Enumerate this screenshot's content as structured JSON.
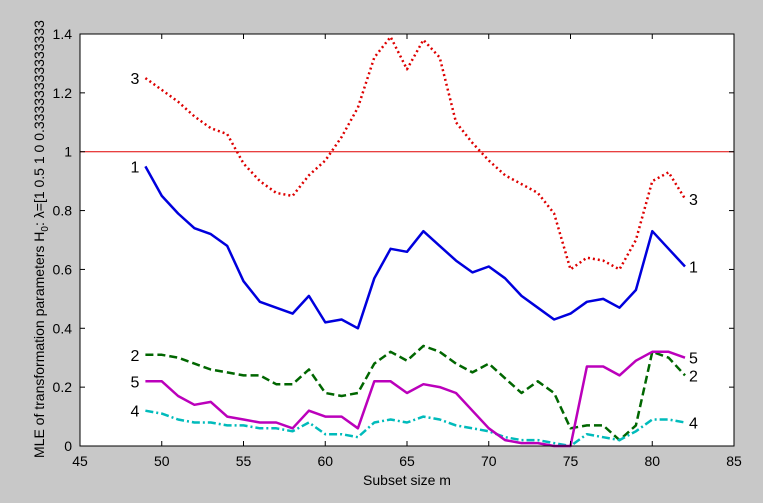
{
  "chart_data": {
    "type": "line",
    "xlabel": "Subset size m",
    "ylabel": "MLE of transformation parameters H",
    "ylabel_sub": "0",
    "ylabel_tail": ": λ=[1 0.5 1 0 0.33333333333333",
    "xlim": [
      45,
      85
    ],
    "ylim": [
      0,
      1.4
    ],
    "xticks": [
      45,
      50,
      55,
      60,
      65,
      70,
      75,
      80,
      85
    ],
    "yticks": [
      0,
      0.2,
      0.4,
      0.6,
      0.8,
      1,
      1.2,
      1.4
    ],
    "reference_line": {
      "y": 1,
      "color": "#e00000"
    },
    "x": [
      49,
      50,
      51,
      52,
      53,
      54,
      55,
      56,
      57,
      58,
      59,
      60,
      61,
      62,
      63,
      64,
      65,
      66,
      67,
      68,
      69,
      70,
      71,
      72,
      73,
      74,
      75,
      76,
      77,
      78,
      79,
      80,
      81,
      82
    ],
    "series": [
      {
        "label": "1",
        "color": "#0000dd",
        "dash": "solid",
        "values": [
          0.95,
          0.85,
          0.79,
          0.74,
          0.72,
          0.68,
          0.56,
          0.49,
          0.47,
          0.45,
          0.51,
          0.42,
          0.43,
          0.4,
          0.57,
          0.67,
          0.66,
          0.73,
          0.68,
          0.63,
          0.59,
          0.61,
          0.57,
          0.51,
          0.47,
          0.43,
          0.45,
          0.49,
          0.5,
          0.47,
          0.53,
          0.73,
          0.67,
          0.61
        ]
      },
      {
        "label": "2",
        "color": "#006600",
        "dash": "dashed",
        "values": [
          0.31,
          0.31,
          0.3,
          0.28,
          0.26,
          0.25,
          0.24,
          0.24,
          0.21,
          0.21,
          0.26,
          0.18,
          0.17,
          0.18,
          0.28,
          0.32,
          0.29,
          0.34,
          0.32,
          0.28,
          0.25,
          0.28,
          0.23,
          0.18,
          0.22,
          0.18,
          0.06,
          0.07,
          0.07,
          0.02,
          0.07,
          0.32,
          0.3,
          0.24
        ]
      },
      {
        "label": "3",
        "color": "#dd0000",
        "dash": "dotted",
        "values": [
          1.25,
          1.21,
          1.17,
          1.12,
          1.08,
          1.06,
          0.96,
          0.9,
          0.86,
          0.85,
          0.92,
          0.97,
          1.05,
          1.15,
          1.32,
          1.39,
          1.28,
          1.38,
          1.32,
          1.1,
          1.03,
          0.97,
          0.92,
          0.89,
          0.86,
          0.79,
          0.6,
          0.64,
          0.63,
          0.6,
          0.7,
          0.9,
          0.93,
          0.84
        ]
      },
      {
        "label": "4",
        "color": "#00bbbb",
        "dash": "dashdot",
        "values": [
          0.12,
          0.11,
          0.09,
          0.08,
          0.08,
          0.07,
          0.07,
          0.06,
          0.06,
          0.05,
          0.08,
          0.04,
          0.04,
          0.03,
          0.08,
          0.09,
          0.08,
          0.1,
          0.09,
          0.07,
          0.06,
          0.05,
          0.03,
          0.02,
          0.02,
          0.01,
          0.0,
          0.04,
          0.03,
          0.02,
          0.05,
          0.09,
          0.09,
          0.08
        ]
      },
      {
        "label": "5",
        "color": "#bb00bb",
        "dash": "solid",
        "values": [
          0.22,
          0.22,
          0.17,
          0.14,
          0.15,
          0.1,
          0.09,
          0.08,
          0.08,
          0.06,
          0.12,
          0.1,
          0.1,
          0.06,
          0.22,
          0.22,
          0.18,
          0.21,
          0.2,
          0.18,
          0.12,
          0.06,
          0.02,
          0.01,
          0.01,
          0.0,
          0.0,
          0.27,
          0.27,
          0.24,
          0.29,
          0.32,
          0.32,
          0.3
        ]
      }
    ]
  }
}
